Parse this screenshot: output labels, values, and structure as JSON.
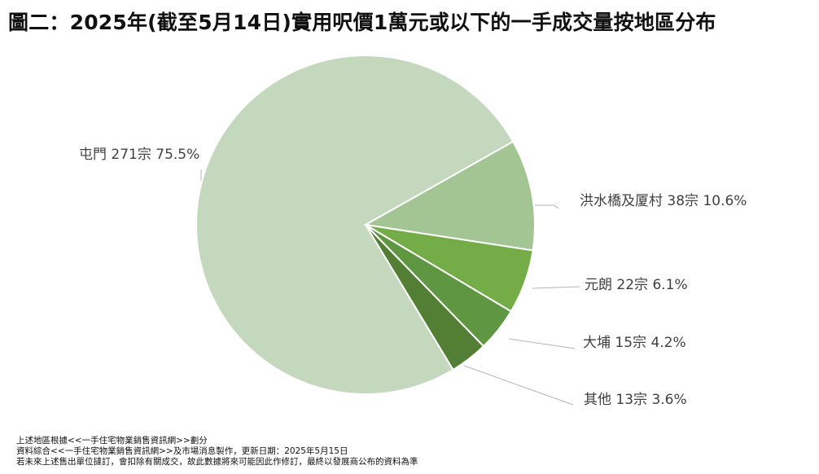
{
  "title": "圖二：2025年(截至5月14日)實用呎價1萬元或以下的一手成交量按地區分布",
  "chart_data": {
    "type": "pie",
    "title": "圖二：2025年(截至5月14日)實用呎價1萬元或以下的一手成交量按地區分布",
    "slices": [
      {
        "category": "屯門",
        "count": 271,
        "percent": 75.5,
        "label": "屯門 271宗 75.5%",
        "color": "#c3d8bc"
      },
      {
        "category": "洪水橋及厦村",
        "count": 38,
        "percent": 10.6,
        "label": "洪水橋及厦村 38宗 10.6%",
        "color": "#a3c594"
      },
      {
        "category": "元朗",
        "count": 22,
        "percent": 6.1,
        "label": "元朗 22宗 6.1%",
        "color": "#74ad47"
      },
      {
        "category": "大埔",
        "count": 15,
        "percent": 4.2,
        "label": "大埔 15宗 4.2%",
        "color": "#5f9641"
      },
      {
        "category": "其他",
        "count": 13,
        "percent": 3.6,
        "label": "其他 13宗 3.6%",
        "color": "#527f33"
      }
    ]
  },
  "footnotes": [
    "上述地區根據<<一手住宅物業銷售資訊網>>劃分",
    "資料綜合<<一手住宅物業銷售資訊網>>及市場消息製作，更新日期：2025年5月15日",
    "若未來上述售出單位撻訂，會扣除有關成交，故此數據將來可能因此作修訂，最終以發展商公布的資料為準"
  ]
}
